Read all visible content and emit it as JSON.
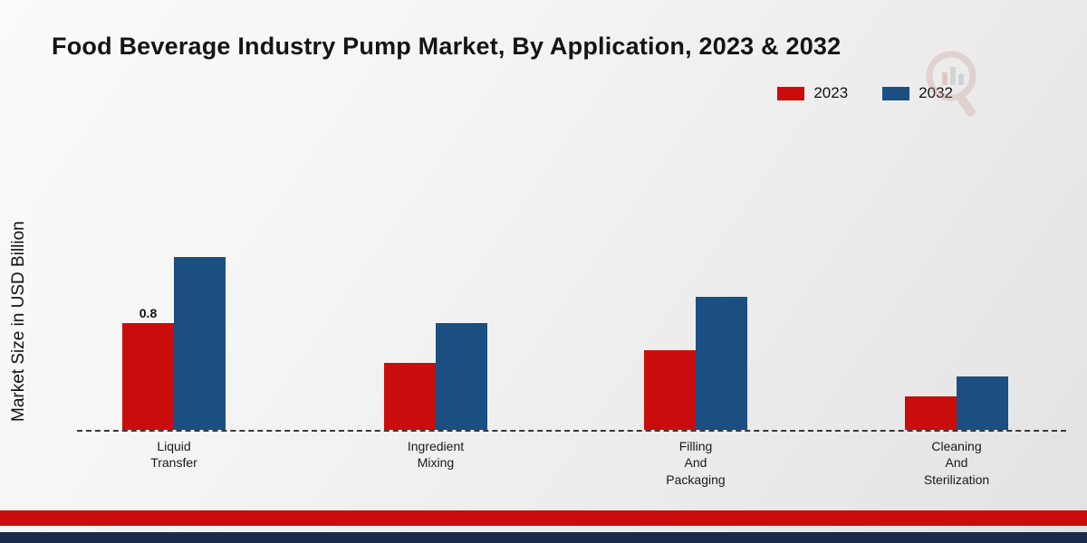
{
  "page": {
    "title": "Food Beverage Industry Pump Market, By Application, 2023 & 2032",
    "ylabel": "Market Size in USD Billion"
  },
  "legend": {
    "items": [
      {
        "label": "2023",
        "color": "#c90d0d"
      },
      {
        "label": "2032",
        "color": "#1b4f82"
      }
    ]
  },
  "chart_data": {
    "type": "bar",
    "title": "Food Beverage Industry Pump Market, By Application, 2023 & 2032",
    "xlabel": "",
    "ylabel": "Market Size in USD Billion",
    "categories": [
      "Liquid Transfer",
      "Ingredient Mixing",
      "Filling And Packaging",
      "Cleaning And Sterilization"
    ],
    "category_lines": [
      [
        "Liquid",
        "Transfer"
      ],
      [
        "Ingredient",
        "Mixing"
      ],
      [
        "Filling",
        "And",
        "Packaging"
      ],
      [
        "Cleaning",
        "And",
        "Sterilization"
      ]
    ],
    "series": [
      {
        "name": "2023",
        "color": "#c90d0d",
        "values": [
          0.8,
          0.5,
          0.6,
          0.25
        ]
      },
      {
        "name": "2032",
        "color": "#1b4f82",
        "values": [
          1.3,
          0.8,
          1.0,
          0.4
        ]
      }
    ],
    "annotations": [
      {
        "category_index": 0,
        "series_index": 0,
        "text": "0.8"
      }
    ],
    "ylim": [
      0,
      2.0
    ],
    "grid": false,
    "legend_position": "top-right",
    "baseline_style": "dashed"
  },
  "footer": {
    "red_color": "#c90d0d",
    "navy_color": "#1b2a4c"
  },
  "watermark": {
    "name": "magnifier-logo"
  }
}
